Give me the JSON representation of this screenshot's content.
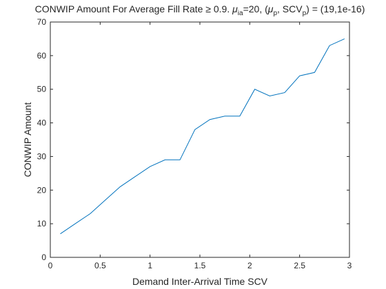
{
  "chart_data": {
    "type": "line",
    "title": "CONWIP Amount For Average Fill Rate ≥ 0.9.  μia=20, (μp, SCVp) = (19,1e-16)",
    "title_parts": {
      "lead": "CONWIP Amount For Average Fill Rate ≥ 0.9.  ",
      "mu": "μ",
      "sub_ia": "ia",
      "eq20": "=20, (",
      "sub_p1": "p",
      "mid": ", SCV",
      "sub_p2": "p",
      "tail": ") = (19,1e-16)"
    },
    "xlabel": "Demand Inter-Arrival Time SCV",
    "ylabel": "CONWIP Amount",
    "xlim": [
      0,
      3
    ],
    "ylim": [
      0,
      70
    ],
    "x_ticks": [
      0,
      0.5,
      1,
      1.5,
      2,
      2.5,
      3
    ],
    "x_tick_labels": [
      "0",
      "0.5",
      "1",
      "1.5",
      "2",
      "2.5",
      "3"
    ],
    "y_ticks": [
      0,
      10,
      20,
      30,
      40,
      50,
      60,
      70
    ],
    "y_tick_labels": [
      "0",
      "10",
      "20",
      "30",
      "40",
      "50",
      "60",
      "70"
    ],
    "grid": false,
    "line_color": "#0072BD",
    "series": [
      {
        "x": [
          0.1,
          0.25,
          0.4,
          0.55,
          0.7,
          0.85,
          1.0,
          1.15,
          1.3,
          1.45,
          1.6,
          1.75,
          1.9,
          2.05,
          2.2,
          2.35,
          2.5,
          2.65,
          2.8,
          2.95
        ],
        "values": [
          7,
          10,
          13,
          17,
          21,
          24,
          27,
          29,
          29,
          38,
          41,
          42,
          42,
          50,
          48,
          49,
          54,
          55,
          63,
          65
        ]
      }
    ]
  }
}
